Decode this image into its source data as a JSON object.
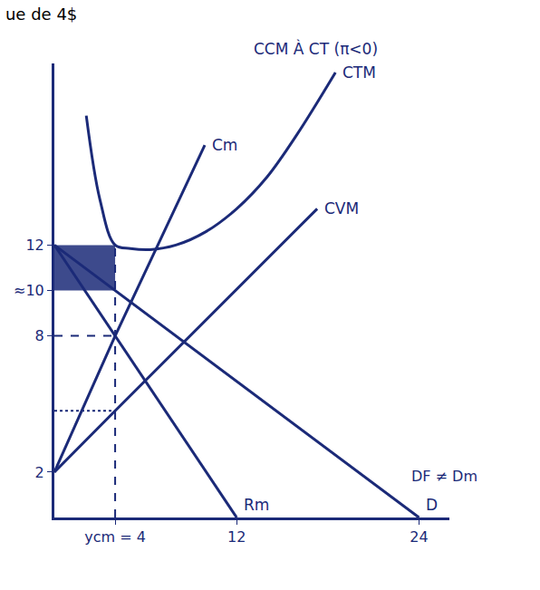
{
  "chart_data": {
    "type": "line",
    "title": "ue de 4$",
    "note": "CCM À CT (π<0)",
    "demand_note": "DF ≠ Dm",
    "color": "#1b2a78",
    "xlim": [
      0,
      26
    ],
    "ylim": [
      0,
      20
    ],
    "xticks": [
      {
        "value": 4,
        "label": "ycm = 4"
      },
      12,
      24
    ],
    "yticks": [
      2,
      8,
      {
        "value": 10,
        "label": "≈10"
      },
      12
    ],
    "grid": false,
    "output": 4,
    "cm_at_output": 8,
    "cvm_at_output": 4.7,
    "price": 10,
    "ctm_at_output": 12,
    "series": [
      {
        "name": "D",
        "x": [
          0,
          24
        ],
        "values": [
          12,
          0
        ]
      },
      {
        "name": "Rm",
        "x": [
          0,
          12
        ],
        "values": [
          12,
          0
        ]
      },
      {
        "name": "Cm",
        "x": [
          0,
          4,
          9.9
        ],
        "values": [
          2,
          8,
          16.4
        ]
      },
      {
        "name": "CVM",
        "x": [
          0,
          4,
          17.3
        ],
        "values": [
          2,
          4.7,
          13.6
        ]
      },
      {
        "name": "CTM",
        "x": [
          2.1,
          3,
          4,
          5,
          6.3,
          8,
          10,
          12,
          14,
          16,
          18.5
        ],
        "values": [
          17.7,
          14.0,
          12.0,
          11.85,
          11.8,
          12.0,
          12.6,
          13.6,
          15.0,
          16.9,
          19.6
        ]
      }
    ]
  }
}
